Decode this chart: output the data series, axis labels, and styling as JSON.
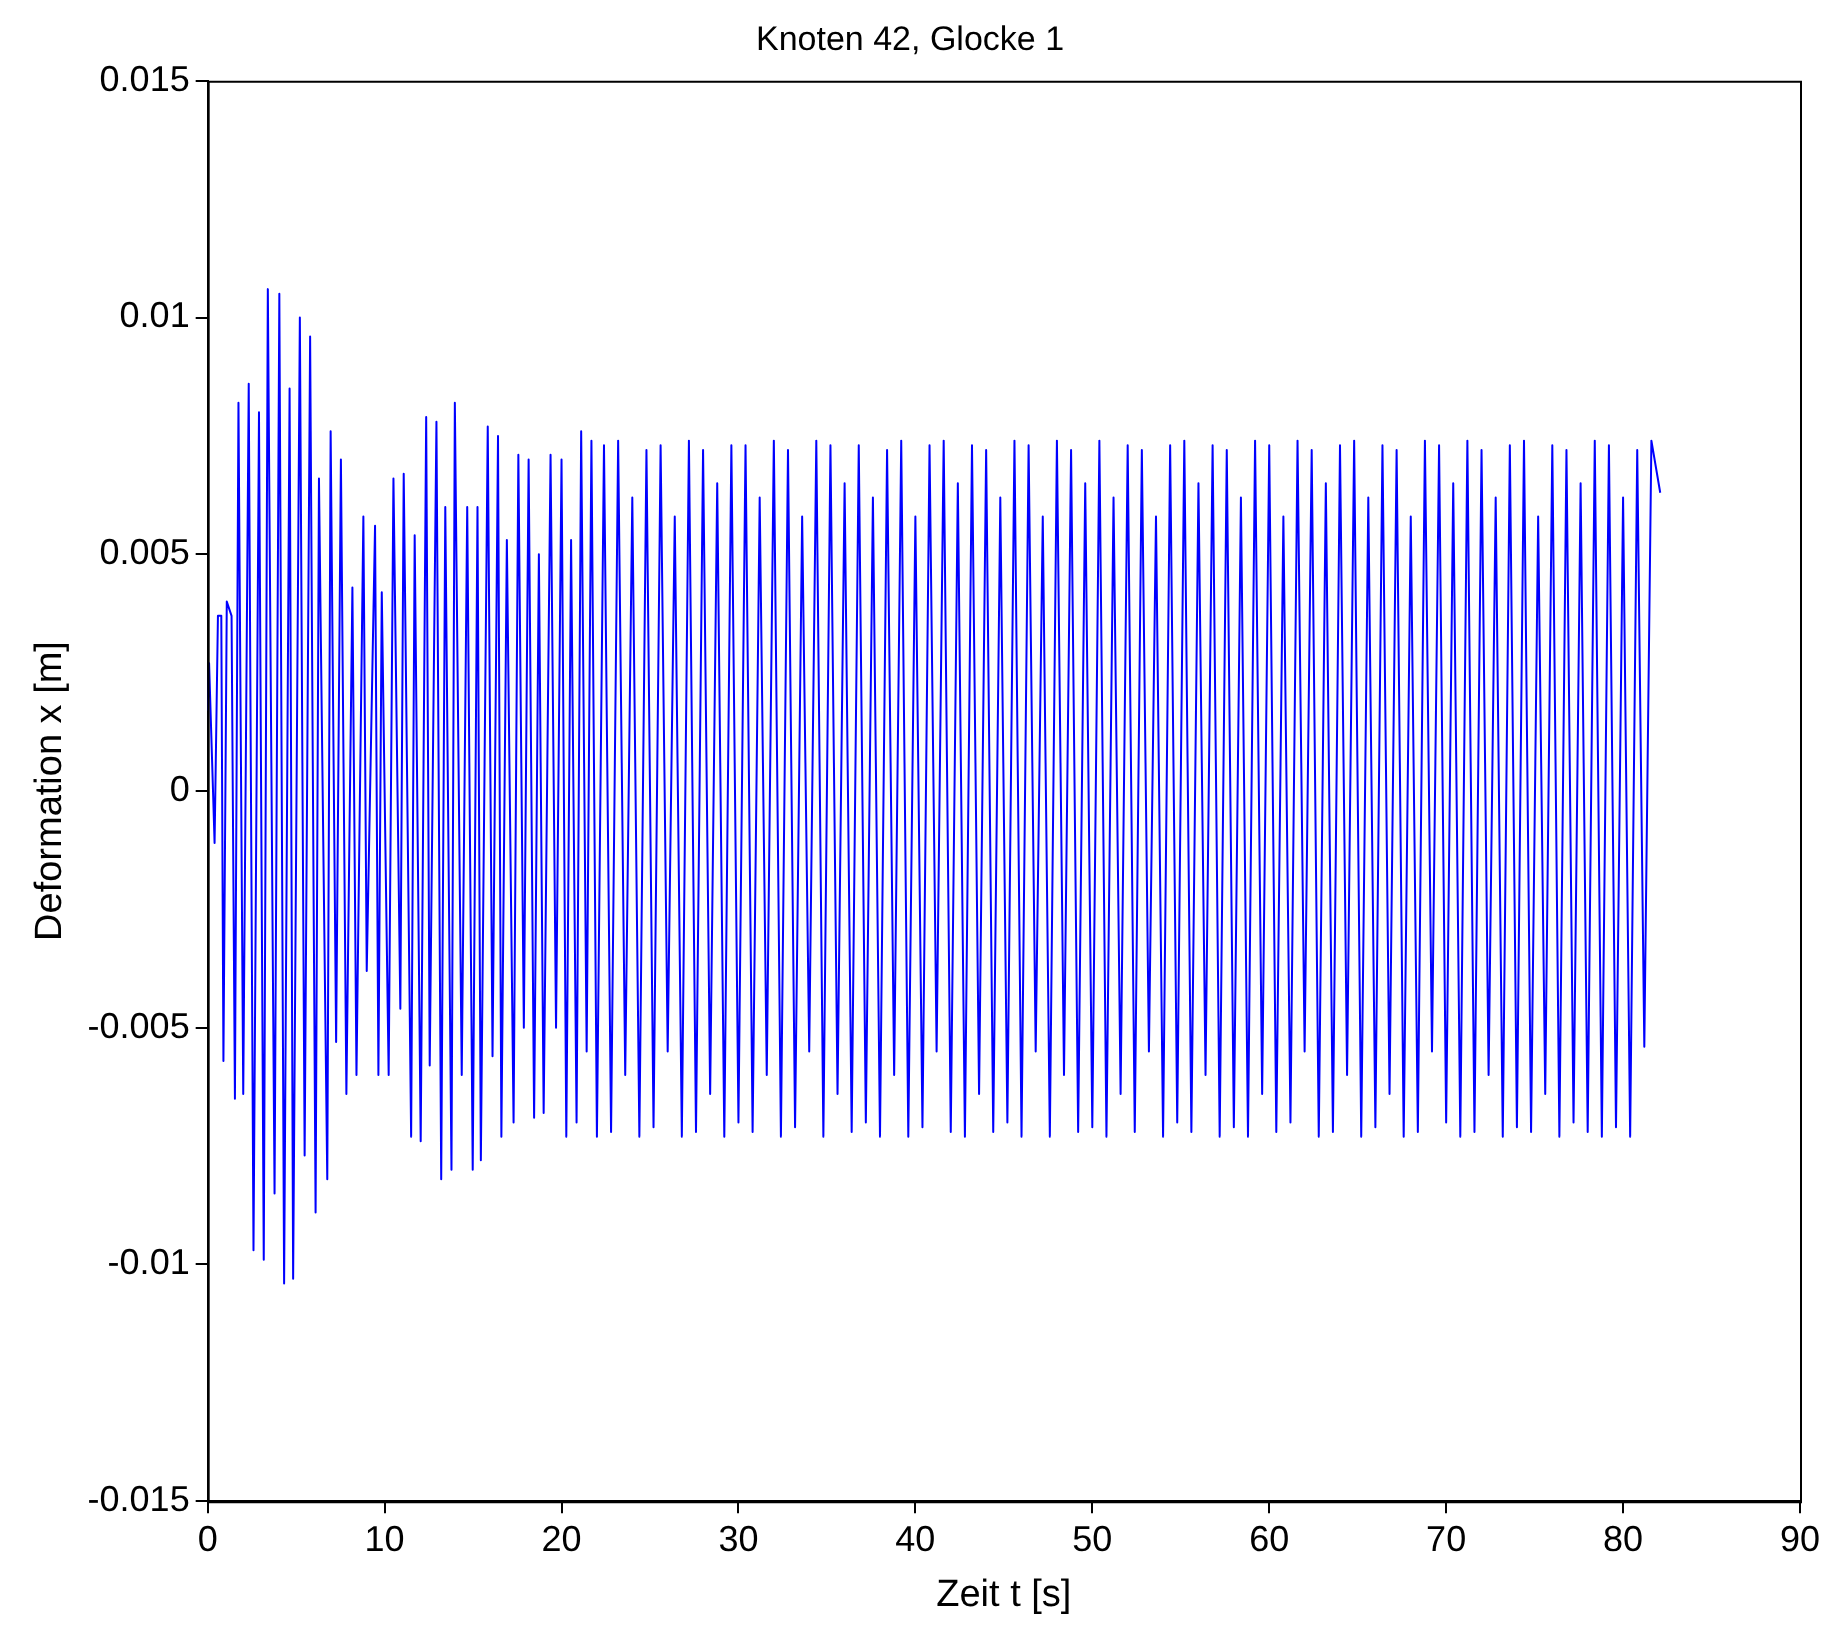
{
  "chart_data": {
    "type": "line",
    "title": "Knoten 42, Glocke 1",
    "xlabel": "Zeit t [s]",
    "ylabel": "Deformation x [m]",
    "xlim": [
      0,
      90
    ],
    "xticks": [
      0,
      10,
      20,
      30,
      40,
      50,
      60,
      70,
      80,
      90
    ],
    "ylim": [
      -0.015,
      0.015
    ],
    "yticks": [
      -0.015,
      -0.01,
      -0.005,
      0,
      0.005,
      0.01,
      0.015
    ],
    "grid": false,
    "legend": false,
    "marker": "none",
    "line_style": "solid",
    "series": [
      {
        "color": "#0000ff",
        "x": [
          0,
          0.08,
          0.31,
          0.39,
          0.58,
          0.77,
          0.89,
          1.08,
          1.35,
          1.54,
          1.74,
          2.01,
          2.32,
          2.59,
          2.9,
          3.17,
          3.4,
          3.78,
          4.05,
          4.32,
          4.63,
          4.83,
          5.21,
          5.48,
          5.79,
          6.1,
          6.29,
          6.76,
          6.95,
          7.26,
          7.53,
          7.84,
          8.18,
          8.41,
          8.8,
          8.99,
          9.46,
          9.65,
          9.84,
          10.23,
          10.5,
          10.89,
          11.08,
          11.5,
          11.7,
          12.04,
          12.35,
          12.55,
          12.93,
          13.2,
          13.43,
          13.78,
          13.97,
          14.36,
          14.67,
          14.98,
          15.25,
          15.44,
          15.83,
          16.1,
          16.41,
          16.6,
          16.91,
          17.29,
          17.56,
          17.87,
          18.14,
          18.45,
          18.72,
          18.99,
          19.38,
          19.69,
          20,
          20.27,
          20.54,
          20.85,
          21.11,
          21.42,
          21.69,
          22,
          22.4,
          22.8,
          23.2,
          23.6,
          24,
          24.4,
          24.8,
          25.2,
          25.6,
          26,
          26.4,
          26.8,
          27.2,
          27.6,
          28,
          28.4,
          28.8,
          29.2,
          29.6,
          30,
          30.4,
          30.8,
          31.2,
          31.6,
          32,
          32.4,
          32.8,
          33.2,
          33.6,
          34,
          34.4,
          34.8,
          35.2,
          35.6,
          36,
          36.4,
          36.8,
          37.2,
          37.6,
          38,
          38.4,
          38.8,
          39.2,
          39.6,
          40,
          40.4,
          40.8,
          41.2,
          41.6,
          42,
          42.4,
          42.8,
          43.2,
          43.6,
          44,
          44.4,
          44.8,
          45.2,
          45.6,
          46,
          46.4,
          46.8,
          47.2,
          47.6,
          48,
          48.4,
          48.8,
          49.2,
          49.6,
          50,
          50.4,
          50.8,
          51.2,
          51.6,
          52,
          52.4,
          52.8,
          53.2,
          53.6,
          54,
          54.4,
          54.8,
          55.2,
          55.6,
          56,
          56.4,
          56.8,
          57.2,
          57.6,
          58,
          58.4,
          58.8,
          59.2,
          59.6,
          60,
          60.4,
          60.8,
          61.2,
          61.6,
          62,
          62.4,
          62.8,
          63.2,
          63.6,
          64,
          64.4,
          64.8,
          65.2,
          65.6,
          66,
          66.4,
          66.8,
          67.2,
          67.6,
          68,
          68.4,
          68.8,
          69.2,
          69.6,
          70,
          70.4,
          70.8,
          71.2,
          71.6,
          72,
          72.4,
          72.8,
          73.2,
          73.6,
          74,
          74.4,
          74.8,
          75.2,
          75.6,
          76,
          76.4,
          76.8,
          77.2,
          77.6,
          78,
          78.4,
          78.8,
          79.2,
          79.6,
          80,
          80.4,
          80.8,
          81.2,
          81.6,
          82.1
        ],
        "values": [
          0.0017,
          0.0027,
          -0.0001,
          -0.0011,
          0.0037,
          0.0037,
          -0.0057,
          0.004,
          0.0037,
          -0.0065,
          0.0082,
          -0.0064,
          0.0086,
          -0.0097,
          0.008,
          -0.0099,
          0.0106,
          -0.0085,
          0.0105,
          -0.0104,
          0.0085,
          -0.0103,
          0.01,
          -0.0077,
          0.0096,
          -0.0089,
          0.0066,
          -0.0082,
          0.0076,
          -0.0053,
          0.007,
          -0.0064,
          0.0043,
          -0.006,
          0.0058,
          -0.0038,
          0.0056,
          -0.006,
          0.0042,
          -0.006,
          0.0066,
          -0.0046,
          0.0067,
          -0.0073,
          0.0054,
          -0.0074,
          0.0079,
          -0.0058,
          0.0078,
          -0.0082,
          0.006,
          -0.008,
          0.0082,
          -0.006,
          0.006,
          -0.008,
          0.006,
          -0.0078,
          0.0077,
          -0.0056,
          0.0075,
          -0.0073,
          0.0053,
          -0.007,
          0.0071,
          -0.005,
          0.007,
          -0.0069,
          0.005,
          -0.0068,
          0.0071,
          -0.005,
          0.007,
          -0.0073,
          0.0053,
          -0.007,
          0.0076,
          -0.0055,
          0.0074,
          -0.0073,
          0.0073,
          -0.0072,
          0.0074,
          -0.006,
          0.0062,
          -0.0073,
          0.0072,
          -0.0071,
          0.0073,
          -0.0055,
          0.0058,
          -0.0073,
          0.0074,
          -0.0072,
          0.0072,
          -0.0064,
          0.0065,
          -0.0073,
          0.0073,
          -0.007,
          0.0073,
          -0.0072,
          0.0062,
          -0.006,
          0.0074,
          -0.0073,
          0.0072,
          -0.0071,
          0.0058,
          -0.0055,
          0.0074,
          -0.0073,
          0.0073,
          -0.0064,
          0.0065,
          -0.0072,
          0.0073,
          -0.007,
          0.0062,
          -0.0073,
          0.0072,
          -0.006,
          0.0074,
          -0.0073,
          0.0058,
          -0.0071,
          0.0073,
          -0.0055,
          0.0074,
          -0.0072,
          0.0065,
          -0.0073,
          0.0073,
          -0.0064,
          0.0072,
          -0.0072,
          0.0062,
          -0.007,
          0.0074,
          -0.0073,
          0.0073,
          -0.0055,
          0.0058,
          -0.0073,
          0.0074,
          -0.006,
          0.0072,
          -0.0072,
          0.0065,
          -0.0071,
          0.0074,
          -0.0073,
          0.0062,
          -0.0064,
          0.0073,
          -0.0072,
          0.0072,
          -0.0055,
          0.0058,
          -0.0073,
          0.0073,
          -0.007,
          0.0074,
          -0.0072,
          0.0065,
          -0.006,
          0.0073,
          -0.0073,
          0.0072,
          -0.0071,
          0.0062,
          -0.0073,
          0.0074,
          -0.0064,
          0.0073,
          -0.0072,
          0.0058,
          -0.007,
          0.0074,
          -0.0055,
          0.0072,
          -0.0073,
          0.0065,
          -0.0072,
          0.0073,
          -0.006,
          0.0074,
          -0.0073,
          0.0062,
          -0.0071,
          0.0073,
          -0.0064,
          0.0072,
          -0.0073,
          0.0058,
          -0.0072,
          0.0074,
          -0.0055,
          0.0073,
          -0.007,
          0.0065,
          -0.0073,
          0.0074,
          -0.0072,
          0.0072,
          -0.006,
          0.0062,
          -0.0073,
          0.0073,
          -0.0071,
          0.0074,
          -0.0072,
          0.0058,
          -0.0064,
          0.0073,
          -0.0073,
          0.0072,
          -0.007,
          0.0065,
          -0.0072,
          0.0074,
          -0.0073,
          0.0073,
          -0.0071,
          0.0062,
          -0.0073,
          0.0072,
          -0.0054,
          0.0074,
          0.0063
        ]
      }
    ]
  }
}
